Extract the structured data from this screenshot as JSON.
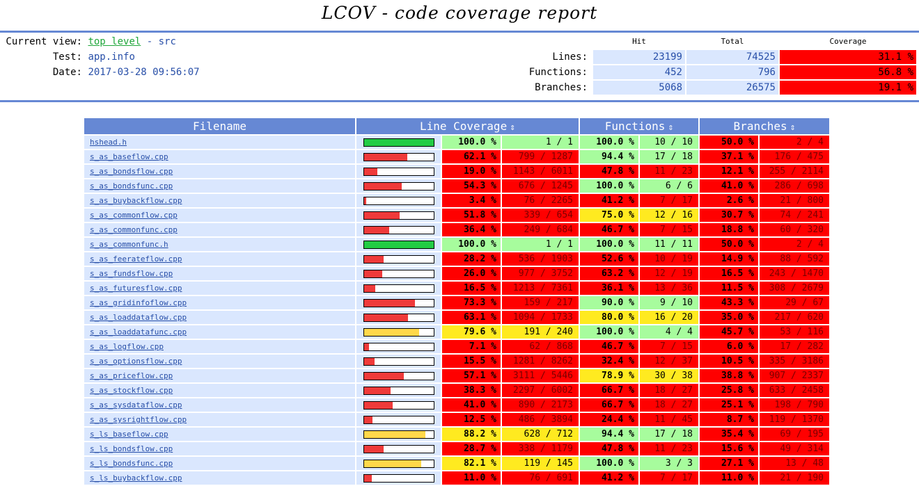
{
  "title": "LCOV - code coverage report",
  "info": {
    "current_view_label": "Current view:",
    "top_level_link": "top level",
    "separator": " - ",
    "current_dir": "src",
    "test_label": "Test:",
    "test_value": "app.info",
    "date_label": "Date:",
    "date_value": "2017-03-28 09:56:07"
  },
  "summary": {
    "headers": {
      "hit": "Hit",
      "total": "Total",
      "coverage": "Coverage"
    },
    "rows": [
      {
        "label": "Lines:",
        "hit": "23199",
        "total": "74525",
        "coverage": "31.1 %"
      },
      {
        "label": "Functions:",
        "hit": "452",
        "total": "796",
        "coverage": "56.8 %"
      },
      {
        "label": "Branches:",
        "hit": "5068",
        "total": "26575",
        "coverage": "19.1 %"
      }
    ]
  },
  "table": {
    "headers": {
      "filename": "Filename",
      "line_coverage": "Line Coverage",
      "functions": "Functions",
      "branches": "Branches",
      "sort_icon": "⇕"
    },
    "colors": {
      "low": "#ff0000",
      "medium": "#ffea20",
      "high": "#a7fc9d",
      "bar_low": "#ef3a3a",
      "bar_med": "#ffd84a",
      "bar_high": "#22cc44"
    },
    "rows": [
      {
        "file": "hshead.h",
        "line_pct": "100.0 %",
        "line_frac": "1 / 1",
        "line_val": 100.0,
        "func_pct": "100.0 %",
        "func_frac": "10 / 10",
        "func_val": 100.0,
        "br_pct": "50.0 %",
        "br_frac": "2 / 4",
        "br_val": 50.0
      },
      {
        "file": "s_as_baseflow.cpp",
        "line_pct": "62.1 %",
        "line_frac": "799 / 1287",
        "line_val": 62.1,
        "func_pct": "94.4 %",
        "func_frac": "17 / 18",
        "func_val": 94.4,
        "br_pct": "37.1 %",
        "br_frac": "176 / 475",
        "br_val": 37.1
      },
      {
        "file": "s_as_bondsflow.cpp",
        "line_pct": "19.0 %",
        "line_frac": "1143 / 6011",
        "line_val": 19.0,
        "func_pct": "47.8 %",
        "func_frac": "11 / 23",
        "func_val": 47.8,
        "br_pct": "12.1 %",
        "br_frac": "255 / 2114",
        "br_val": 12.1
      },
      {
        "file": "s_as_bondsfunc.cpp",
        "line_pct": "54.3 %",
        "line_frac": "676 / 1245",
        "line_val": 54.3,
        "func_pct": "100.0 %",
        "func_frac": "6 / 6",
        "func_val": 100.0,
        "br_pct": "41.0 %",
        "br_frac": "286 / 698",
        "br_val": 41.0
      },
      {
        "file": "s_as_buybackflow.cpp",
        "line_pct": "3.4 %",
        "line_frac": "76 / 2265",
        "line_val": 3.4,
        "func_pct": "41.2 %",
        "func_frac": "7 / 17",
        "func_val": 41.2,
        "br_pct": "2.6 %",
        "br_frac": "21 / 800",
        "br_val": 2.6
      },
      {
        "file": "s_as_commonflow.cpp",
        "line_pct": "51.8 %",
        "line_frac": "339 / 654",
        "line_val": 51.8,
        "func_pct": "75.0 %",
        "func_frac": "12 / 16",
        "func_val": 75.0,
        "br_pct": "30.7 %",
        "br_frac": "74 / 241",
        "br_val": 30.7
      },
      {
        "file": "s_as_commonfunc.cpp",
        "line_pct": "36.4 %",
        "line_frac": "249 / 684",
        "line_val": 36.4,
        "func_pct": "46.7 %",
        "func_frac": "7 / 15",
        "func_val": 46.7,
        "br_pct": "18.8 %",
        "br_frac": "60 / 320",
        "br_val": 18.8
      },
      {
        "file": "s_as_commonfunc.h",
        "line_pct": "100.0 %",
        "line_frac": "1 / 1",
        "line_val": 100.0,
        "func_pct": "100.0 %",
        "func_frac": "11 / 11",
        "func_val": 100.0,
        "br_pct": "50.0 %",
        "br_frac": "2 / 4",
        "br_val": 50.0
      },
      {
        "file": "s_as_feerateflow.cpp",
        "line_pct": "28.2 %",
        "line_frac": "536 / 1903",
        "line_val": 28.2,
        "func_pct": "52.6 %",
        "func_frac": "10 / 19",
        "func_val": 52.6,
        "br_pct": "14.9 %",
        "br_frac": "88 / 592",
        "br_val": 14.9
      },
      {
        "file": "s_as_fundsflow.cpp",
        "line_pct": "26.0 %",
        "line_frac": "977 / 3752",
        "line_val": 26.0,
        "func_pct": "63.2 %",
        "func_frac": "12 / 19",
        "func_val": 63.2,
        "br_pct": "16.5 %",
        "br_frac": "243 / 1470",
        "br_val": 16.5
      },
      {
        "file": "s_as_futuresflow.cpp",
        "line_pct": "16.5 %",
        "line_frac": "1213 / 7361",
        "line_val": 16.5,
        "func_pct": "36.1 %",
        "func_frac": "13 / 36",
        "func_val": 36.1,
        "br_pct": "11.5 %",
        "br_frac": "308 / 2679",
        "br_val": 11.5
      },
      {
        "file": "s_as_gridinfoflow.cpp",
        "line_pct": "73.3 %",
        "line_frac": "159 / 217",
        "line_val": 73.3,
        "func_pct": "90.0 %",
        "func_frac": "9 / 10",
        "func_val": 90.0,
        "br_pct": "43.3 %",
        "br_frac": "29 / 67",
        "br_val": 43.3
      },
      {
        "file": "s_as_loaddataflow.cpp",
        "line_pct": "63.1 %",
        "line_frac": "1094 / 1733",
        "line_val": 63.1,
        "func_pct": "80.0 %",
        "func_frac": "16 / 20",
        "func_val": 80.0,
        "br_pct": "35.0 %",
        "br_frac": "217 / 620",
        "br_val": 35.0
      },
      {
        "file": "s_as_loaddatafunc.cpp",
        "line_pct": "79.6 %",
        "line_frac": "191 / 240",
        "line_val": 79.6,
        "func_pct": "100.0 %",
        "func_frac": "4 / 4",
        "func_val": 100.0,
        "br_pct": "45.7 %",
        "br_frac": "53 / 116",
        "br_val": 45.7
      },
      {
        "file": "s_as_logflow.cpp",
        "line_pct": "7.1 %",
        "line_frac": "62 / 868",
        "line_val": 7.1,
        "func_pct": "46.7 %",
        "func_frac": "7 / 15",
        "func_val": 46.7,
        "br_pct": "6.0 %",
        "br_frac": "17 / 282",
        "br_val": 6.0
      },
      {
        "file": "s_as_optionsflow.cpp",
        "line_pct": "15.5 %",
        "line_frac": "1281 / 8262",
        "line_val": 15.5,
        "func_pct": "32.4 %",
        "func_frac": "12 / 37",
        "func_val": 32.4,
        "br_pct": "10.5 %",
        "br_frac": "335 / 3186",
        "br_val": 10.5
      },
      {
        "file": "s_as_priceflow.cpp",
        "line_pct": "57.1 %",
        "line_frac": "3111 / 5446",
        "line_val": 57.1,
        "func_pct": "78.9 %",
        "func_frac": "30 / 38",
        "func_val": 78.9,
        "br_pct": "38.8 %",
        "br_frac": "907 / 2337",
        "br_val": 38.8
      },
      {
        "file": "s_as_stockflow.cpp",
        "line_pct": "38.3 %",
        "line_frac": "2297 / 6002",
        "line_val": 38.3,
        "func_pct": "66.7 %",
        "func_frac": "18 / 27",
        "func_val": 66.7,
        "br_pct": "25.8 %",
        "br_frac": "633 / 2458",
        "br_val": 25.8
      },
      {
        "file": "s_as_sysdataflow.cpp",
        "line_pct": "41.0 %",
        "line_frac": "890 / 2173",
        "line_val": 41.0,
        "func_pct": "66.7 %",
        "func_frac": "18 / 27",
        "func_val": 66.7,
        "br_pct": "25.1 %",
        "br_frac": "198 / 790",
        "br_val": 25.1
      },
      {
        "file": "s_as_sysrightflow.cpp",
        "line_pct": "12.5 %",
        "line_frac": "486 / 3894",
        "line_val": 12.5,
        "func_pct": "24.4 %",
        "func_frac": "11 / 45",
        "func_val": 24.4,
        "br_pct": "8.7 %",
        "br_frac": "119 / 1370",
        "br_val": 8.7
      },
      {
        "file": "s_ls_baseflow.cpp",
        "line_pct": "88.2 %",
        "line_frac": "628 / 712",
        "line_val": 88.2,
        "func_pct": "94.4 %",
        "func_frac": "17 / 18",
        "func_val": 94.4,
        "br_pct": "35.4 %",
        "br_frac": "69 / 195",
        "br_val": 35.4
      },
      {
        "file": "s_ls_bondsflow.cpp",
        "line_pct": "28.7 %",
        "line_frac": "338 / 1179",
        "line_val": 28.7,
        "func_pct": "47.8 %",
        "func_frac": "11 / 23",
        "func_val": 47.8,
        "br_pct": "15.6 %",
        "br_frac": "49 / 314",
        "br_val": 15.6
      },
      {
        "file": "s_ls_bondsfunc.cpp",
        "line_pct": "82.1 %",
        "line_frac": "119 / 145",
        "line_val": 82.1,
        "func_pct": "100.0 %",
        "func_frac": "3 / 3",
        "func_val": 100.0,
        "br_pct": "27.1 %",
        "br_frac": "13 / 48",
        "br_val": 27.1
      },
      {
        "file": "s_ls_buybackflow.cpp",
        "line_pct": "11.0 %",
        "line_frac": "76 / 691",
        "line_val": 11.0,
        "func_pct": "41.2 %",
        "func_frac": "7 / 17",
        "func_val": 41.2,
        "br_pct": "11.0 %",
        "br_frac": "21 / 190",
        "br_val": 11.0
      }
    ]
  }
}
